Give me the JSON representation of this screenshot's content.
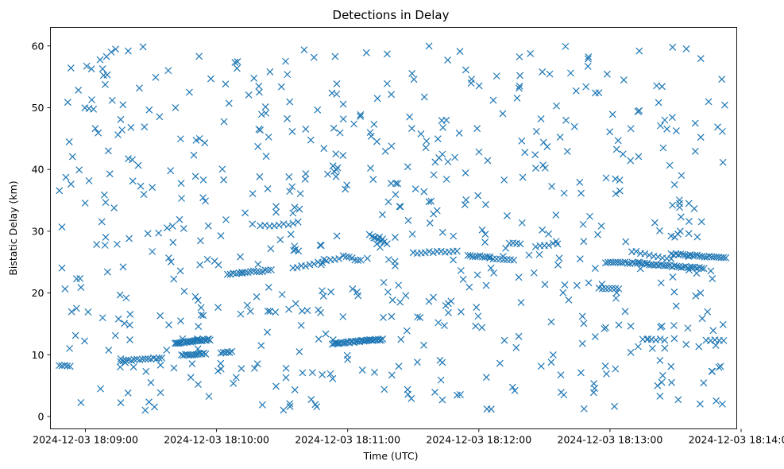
{
  "chart_data": {
    "type": "scatter",
    "title": "Detections in Delay",
    "xlabel": "Time (UTC)",
    "ylabel": "Bistatic Delay (km)",
    "xlim": [
      "2024-12-03 18:08:44",
      "2024-12-03 18:13:58"
    ],
    "ylim": [
      -2,
      63
    ],
    "x_ticks": [
      "2024-12-03 18:09:00",
      "2024-12-03 18:10:00",
      "2024-12-03 18:11:00",
      "2024-12-03 18:12:00",
      "2024-12-03 18:13:00",
      "2024-12-03 18:14:00"
    ],
    "y_ticks": [
      0,
      10,
      20,
      30,
      40,
      50,
      60
    ],
    "marker": "x",
    "color": "#1f77b4",
    "grid": false,
    "legend": "none",
    "tracks": [
      {
        "x_start": "2024-12-03 18:08:48",
        "x_end": "2024-12-03 18:08:53",
        "y_start": 8.2,
        "y_end": 8.2,
        "count": 5
      },
      {
        "x_start": "2024-12-03 18:09:16",
        "x_end": "2024-12-03 18:09:35",
        "y_start": 9.0,
        "y_end": 9.5,
        "count": 16
      },
      {
        "x_start": "2024-12-03 18:09:41",
        "x_end": "2024-12-03 18:09:57",
        "y_start": 11.9,
        "y_end": 12.5,
        "count": 28
      },
      {
        "x_start": "2024-12-03 18:09:44",
        "x_end": "2024-12-03 18:09:55",
        "y_start": 9.9,
        "y_end": 10.2,
        "count": 14
      },
      {
        "x_start": "2024-12-03 18:10:02",
        "x_end": "2024-12-03 18:10:07",
        "y_start": 10.3,
        "y_end": 10.5,
        "count": 6
      },
      {
        "x_start": "2024-12-03 18:10:05",
        "x_end": "2024-12-03 18:10:25",
        "y_start": 23.1,
        "y_end": 23.7,
        "count": 16
      },
      {
        "x_start": "2024-12-03 18:10:20",
        "x_end": "2024-12-03 18:10:35",
        "y_start": 30.8,
        "y_end": 31.2,
        "count": 8
      },
      {
        "x_start": "2024-12-03 18:10:35",
        "x_end": "2024-12-03 18:10:56",
        "y_start": 24.0,
        "y_end": 25.6,
        "count": 12
      },
      {
        "x_start": "2024-12-03 18:10:53",
        "x_end": "2024-12-03 18:11:16",
        "y_start": 11.8,
        "y_end": 12.5,
        "count": 36
      },
      {
        "x_start": "2024-12-03 18:10:58",
        "x_end": "2024-12-03 18:11:06",
        "y_start": 26.0,
        "y_end": 25.2,
        "count": 7
      },
      {
        "x_start": "2024-12-03 18:11:10",
        "x_end": "2024-12-03 18:11:18",
        "y_start": 29.5,
        "y_end": 28.0,
        "count": 7
      },
      {
        "x_start": "2024-12-03 18:11:30",
        "x_end": "2024-12-03 18:11:50",
        "y_start": 26.5,
        "y_end": 26.8,
        "count": 12
      },
      {
        "x_start": "2024-12-03 18:11:55",
        "x_end": "2024-12-03 18:12:05",
        "y_start": 26.0,
        "y_end": 25.9,
        "count": 10
      },
      {
        "x_start": "2024-12-03 18:12:05",
        "x_end": "2024-12-03 18:12:16",
        "y_start": 25.6,
        "y_end": 25.4,
        "count": 8
      },
      {
        "x_start": "2024-12-03 18:12:14",
        "x_end": "2024-12-03 18:12:19",
        "y_start": 28.0,
        "y_end": 28.0,
        "count": 4
      },
      {
        "x_start": "2024-12-03 18:12:26",
        "x_end": "2024-12-03 18:12:36",
        "y_start": 27.6,
        "y_end": 28.0,
        "count": 6
      },
      {
        "x_start": "2024-12-03 18:12:55",
        "x_end": "2024-12-03 18:13:04",
        "y_start": 20.8,
        "y_end": 20.8,
        "count": 7
      },
      {
        "x_start": "2024-12-03 18:12:58",
        "x_end": "2024-12-03 18:13:17",
        "y_start": 25.0,
        "y_end": 24.8,
        "count": 18
      },
      {
        "x_start": "2024-12-03 18:13:10",
        "x_end": "2024-12-03 18:13:28",
        "y_start": 26.8,
        "y_end": 25.5,
        "count": 10
      },
      {
        "x_start": "2024-12-03 18:13:17",
        "x_end": "2024-12-03 18:13:43",
        "y_start": 24.6,
        "y_end": 24.0,
        "count": 26
      },
      {
        "x_start": "2024-12-03 18:13:28",
        "x_end": "2024-12-03 18:13:53",
        "y_start": 26.3,
        "y_end": 25.7,
        "count": 24
      },
      {
        "x_start": "2024-12-03 18:13:15",
        "x_end": "2024-12-03 18:13:25",
        "y_start": 12.6,
        "y_end": 12.4,
        "count": 6
      },
      {
        "x_start": "2024-12-03 18:13:44",
        "x_end": "2024-12-03 18:13:52",
        "y_start": 12.4,
        "y_end": 12.2,
        "count": 5
      }
    ],
    "clutter": {
      "count": 640,
      "x_range": [
        "2024-12-03 18:08:47",
        "2024-12-03 18:13:53"
      ],
      "y_range": [
        1,
        60
      ]
    }
  }
}
